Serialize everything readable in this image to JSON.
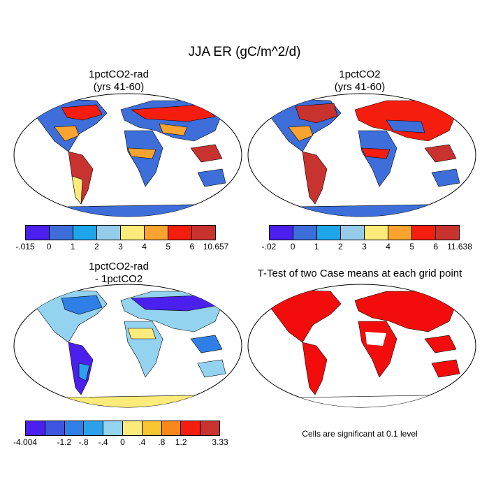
{
  "title": "JJA ER (gC/m^2/d)",
  "panels": [
    {
      "title_line1": "1pctCO2-rad",
      "title_line2": "(yrs 41-60)",
      "colorbar": {
        "colors": [
          "#4b20ef",
          "#3e6ed9",
          "#1fa6ea",
          "#94ccea",
          "#fbeb7a",
          "#f9a431",
          "#f51d0e",
          "#c8322f"
        ],
        "labels": [
          "-.015",
          "0",
          "1",
          "2",
          "3",
          "4",
          "5",
          "6",
          "10.657"
        ]
      }
    },
    {
      "title_line1": "1pctCO2",
      "title_line2": "(yrs 41-60)",
      "colorbar": {
        "colors": [
          "#4b20ef",
          "#3e6ed9",
          "#1fa6ea",
          "#94ccea",
          "#fbeb7a",
          "#f9a431",
          "#f51d0e",
          "#c8322f"
        ],
        "labels": [
          "-.02",
          "0",
          "1",
          "2",
          "3",
          "4",
          "5",
          "6",
          "11.638"
        ]
      }
    },
    {
      "title_line1": "1pctCO2-rad",
      "title_line2": "- 1pctCO2",
      "colorbar": {
        "colors": [
          "#4b20ef",
          "#3e55e0",
          "#2f7fe6",
          "#2aa1ea",
          "#94d3f0",
          "#fbeb7a",
          "#f9c531",
          "#f9871a",
          "#f51d0e",
          "#c8322f"
        ],
        "labels": [
          "-4.004",
          "-1.2",
          "-.8",
          "-.4",
          "0",
          ".4",
          ".8",
          "1.2",
          "3.33"
        ],
        "label_positions": [
          0,
          2,
          3,
          4,
          5,
          6,
          7,
          8,
          10
        ]
      }
    },
    {
      "title": "T-Test of two Case means at each grid point",
      "note": "Cells are significant at 0.1 level"
    }
  ]
}
